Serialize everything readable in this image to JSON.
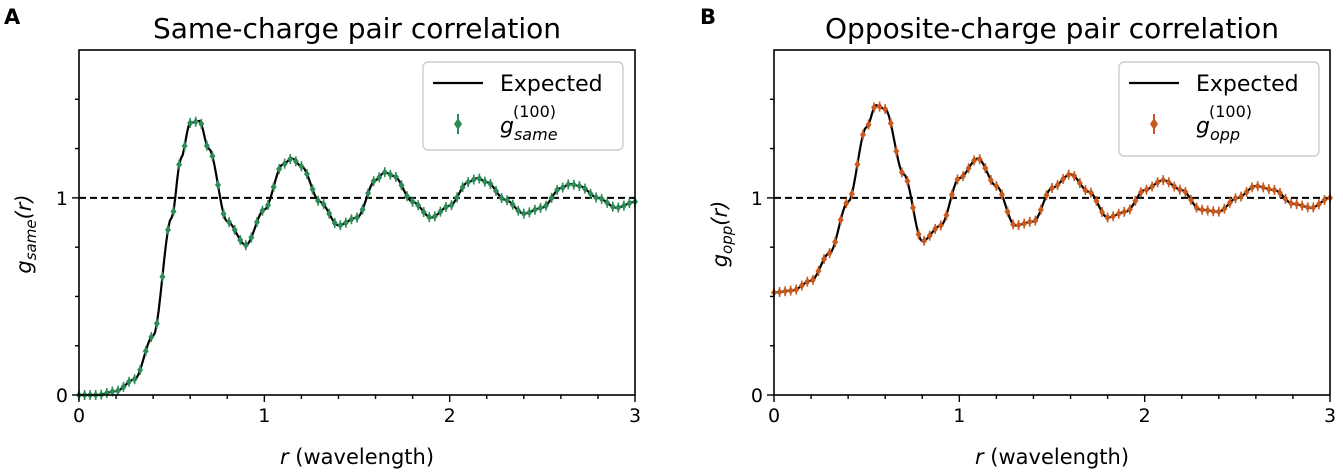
{
  "chart_data": [
    {
      "type": "line",
      "panel_letter": "A",
      "title": "Same-charge pair correlation",
      "ylabel": {
        "base": "g",
        "sub": "same",
        "tail": "(r)"
      },
      "xlabel": {
        "italic": "r",
        "rest": " (wavelength)"
      },
      "xlim": [
        0,
        3
      ],
      "ylim": [
        0,
        1.75
      ],
      "xticks": [
        0,
        1,
        2,
        3
      ],
      "yticks": [
        0,
        1
      ],
      "grid": false,
      "legend_position": "top-right",
      "reference_line": 1,
      "curve_model": {
        "start_x": 0.15,
        "amplitude": 0.85,
        "decay": 0.36,
        "period": 0.5,
        "phase_peak": 0.615,
        "rise_center": 0.52,
        "rise_width": 0.075
      },
      "series": [
        {
          "name": "Expected",
          "style": "line",
          "color": "#000000",
          "x": [
            0,
            0.1,
            0.2,
            0.3,
            0.4,
            0.5,
            0.55,
            0.6,
            0.65,
            0.7,
            0.8,
            0.9,
            1.0,
            1.1,
            1.15,
            1.2,
            1.3,
            1.4,
            1.5,
            1.6,
            1.65,
            1.7,
            1.8,
            1.9,
            2.0,
            2.1,
            2.15,
            2.2,
            2.3,
            2.4,
            2.5,
            2.6,
            2.65,
            2.7,
            2.8,
            2.9,
            3.0
          ],
          "values": [
            0.0,
            0.0,
            0.02,
            0.08,
            0.3,
            0.9,
            1.2,
            1.38,
            1.39,
            1.25,
            0.88,
            0.76,
            0.94,
            1.17,
            1.2,
            1.16,
            0.98,
            0.86,
            0.9,
            1.09,
            1.13,
            1.11,
            0.98,
            0.9,
            0.96,
            1.08,
            1.1,
            1.08,
            0.99,
            0.92,
            0.95,
            1.05,
            1.07,
            1.06,
            1.0,
            0.95,
            0.98
          ]
        },
        {
          "name": {
            "base": "g",
            "sub": "same",
            "sup": "(100)"
          },
          "style": "errorbar",
          "color": "#2e8b57"
        }
      ]
    },
    {
      "type": "line",
      "panel_letter": "B",
      "title": "Opposite-charge pair correlation",
      "ylabel": {
        "base": "g",
        "sub": "opp",
        "tail": "(r)"
      },
      "xlabel": {
        "italic": "r",
        "rest": " (wavelength)"
      },
      "xlim": [
        0,
        3
      ],
      "ylim": [
        0,
        1.75
      ],
      "xticks": [
        0,
        1,
        2,
        3
      ],
      "yticks": [
        0,
        1
      ],
      "grid": false,
      "legend_position": "top-right",
      "reference_line": 1,
      "curve_model": {
        "start_x": 0.15,
        "amplitude": 0.72,
        "decay": 0.6,
        "period": 0.5,
        "phase_peak": 0.57,
        "base_value": 0.52,
        "base_blend": 0.18
      },
      "series": [
        {
          "name": "Expected",
          "style": "line",
          "color": "#000000",
          "x": [
            0,
            0.1,
            0.2,
            0.3,
            0.4,
            0.5,
            0.55,
            0.6,
            0.7,
            0.8,
            0.9,
            1.0,
            1.1,
            1.2,
            1.3,
            1.4,
            1.5,
            1.6,
            1.7,
            1.8,
            1.9,
            2.0,
            2.1,
            2.2,
            2.3,
            2.4,
            2.5,
            2.6,
            2.7,
            2.8,
            2.9,
            3.0
          ],
          "values": [
            0.52,
            0.53,
            0.58,
            0.72,
            0.98,
            1.36,
            1.47,
            1.45,
            1.12,
            0.78,
            0.86,
            1.1,
            1.2,
            1.06,
            0.86,
            0.88,
            1.05,
            1.12,
            1.03,
            0.9,
            0.93,
            1.04,
            1.09,
            1.04,
            0.94,
            0.93,
            1.0,
            1.06,
            1.04,
            0.97,
            0.95,
            1.0
          ]
        },
        {
          "name": {
            "base": "g",
            "sub": "opp",
            "sup": "(100)"
          },
          "style": "errorbar",
          "color": "#c8591f"
        }
      ]
    }
  ]
}
